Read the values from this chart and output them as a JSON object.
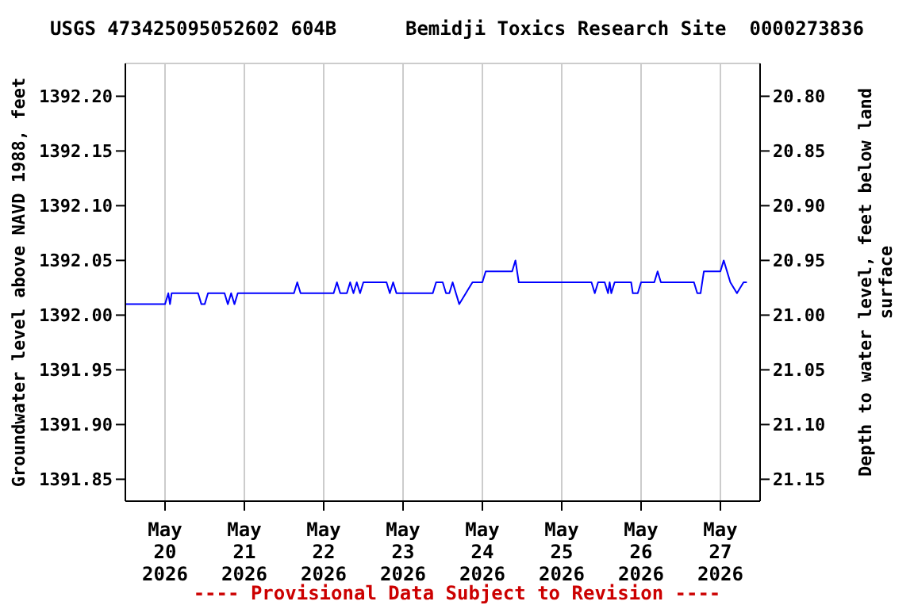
{
  "chart_data": {
    "type": "line",
    "title": "USGS 473425095052602 604B      Bemidji Toxics Research Site  0000273836",
    "ylabel": "Groundwater level above NAVD 1988, feet",
    "y2label": "Depth to water level, feet below land\nsurface",
    "annotations": [
      "---- Provisional Data Subject to Revision ----"
    ],
    "x": [
      "2026-05-19T12:00",
      "2026-05-20T00:00",
      "2026-05-20T01:00",
      "2026-05-20T01:30",
      "2026-05-20T02:00",
      "2026-05-20T10:00",
      "2026-05-20T11:00",
      "2026-05-20T12:00",
      "2026-05-20T13:00",
      "2026-05-20T18:00",
      "2026-05-20T19:00",
      "2026-05-20T20:00",
      "2026-05-20T21:00",
      "2026-05-20T22:00",
      "2026-05-21T15:00",
      "2026-05-21T16:00",
      "2026-05-21T17:00",
      "2026-05-22T03:00",
      "2026-05-22T04:00",
      "2026-05-22T05:00",
      "2026-05-22T07:00",
      "2026-05-22T08:00",
      "2026-05-22T09:00",
      "2026-05-22T10:00",
      "2026-05-22T11:00",
      "2026-05-22T12:00",
      "2026-05-22T19:00",
      "2026-05-22T20:00",
      "2026-05-22T21:00",
      "2026-05-22T22:00",
      "2026-05-23T09:00",
      "2026-05-23T10:00",
      "2026-05-23T12:00",
      "2026-05-23T13:00",
      "2026-05-23T14:00",
      "2026-05-23T15:00",
      "2026-05-23T17:00",
      "2026-05-23T19:00",
      "2026-05-23T21:00",
      "2026-05-24T00:00",
      "2026-05-24T01:00",
      "2026-05-24T09:00",
      "2026-05-24T10:00",
      "2026-05-24T11:00",
      "2026-05-25T09:00",
      "2026-05-25T10:00",
      "2026-05-25T11:00",
      "2026-05-25T13:00",
      "2026-05-25T14:00",
      "2026-05-25T14:30",
      "2026-05-25T15:00",
      "2026-05-25T16:00",
      "2026-05-25T21:00",
      "2026-05-25T21:30",
      "2026-05-25T23:00",
      "2026-05-26T00:00",
      "2026-05-26T04:00",
      "2026-05-26T05:00",
      "2026-05-26T06:00",
      "2026-05-26T16:00",
      "2026-05-26T17:00",
      "2026-05-26T18:00",
      "2026-05-26T19:00",
      "2026-05-27T00:00",
      "2026-05-27T01:00",
      "2026-05-27T03:00",
      "2026-05-27T05:00",
      "2026-05-27T07:00",
      "2026-05-27T08:00"
    ],
    "series": [
      {
        "color": "#0000ff",
        "values": [
          1392.01,
          1392.01,
          1392.02,
          1392.01,
          1392.02,
          1392.02,
          1392.01,
          1392.01,
          1392.02,
          1392.02,
          1392.01,
          1392.02,
          1392.01,
          1392.02,
          1392.02,
          1392.03,
          1392.02,
          1392.02,
          1392.03,
          1392.02,
          1392.02,
          1392.03,
          1392.02,
          1392.03,
          1392.02,
          1392.03,
          1392.03,
          1392.02,
          1392.03,
          1392.02,
          1392.02,
          1392.03,
          1392.03,
          1392.02,
          1392.02,
          1392.03,
          1392.01,
          1392.02,
          1392.03,
          1392.03,
          1392.04,
          1392.04,
          1392.05,
          1392.03,
          1392.03,
          1392.02,
          1392.03,
          1392.03,
          1392.02,
          1392.03,
          1392.02,
          1392.03,
          1392.03,
          1392.02,
          1392.02,
          1392.03,
          1392.03,
          1392.04,
          1392.03,
          1392.03,
          1392.02,
          1392.02,
          1392.04,
          1392.04,
          1392.05,
          1392.03,
          1392.02,
          1392.03,
          1392.03
        ]
      }
    ],
    "xlim": [
      "2026-05-19T12:00",
      "2026-05-27T12:00"
    ],
    "xticks": [
      {
        "value": "2026-05-20",
        "label": "May\n20\n2026"
      },
      {
        "value": "2026-05-21",
        "label": "May\n21\n2026"
      },
      {
        "value": "2026-05-22",
        "label": "May\n22\n2026"
      },
      {
        "value": "2026-05-23",
        "label": "May\n23\n2026"
      },
      {
        "value": "2026-05-24",
        "label": "May\n24\n2026"
      },
      {
        "value": "2026-05-25",
        "label": "May\n25\n2026"
      },
      {
        "value": "2026-05-26",
        "label": "May\n26\n2026"
      },
      {
        "value": "2026-05-27",
        "label": "May\n27\n2026"
      }
    ],
    "ylim": [
      1391.83,
      1392.23
    ],
    "yticks": [
      {
        "value": 1391.85,
        "label": "1391.85"
      },
      {
        "value": 1391.9,
        "label": "1391.90"
      },
      {
        "value": 1391.95,
        "label": "1391.95"
      },
      {
        "value": 1392.0,
        "label": "1392.00"
      },
      {
        "value": 1392.05,
        "label": "1392.05"
      },
      {
        "value": 1392.1,
        "label": "1392.10"
      },
      {
        "value": 1392.15,
        "label": "1392.15"
      },
      {
        "value": 1392.2,
        "label": "1392.20"
      }
    ],
    "y2lim": [
      21.17,
      20.77
    ],
    "y2ticks": [
      {
        "value": 21.15,
        "label": "21.15"
      },
      {
        "value": 21.1,
        "label": "21.10"
      },
      {
        "value": 21.05,
        "label": "21.05"
      },
      {
        "value": 21.0,
        "label": "21.00"
      },
      {
        "value": 20.95,
        "label": "20.95"
      },
      {
        "value": 20.9,
        "label": "20.90"
      },
      {
        "value": 20.85,
        "label": "20.85"
      },
      {
        "value": 20.8,
        "label": "20.80"
      }
    ],
    "grid": true,
    "legend": false,
    "marker": "none",
    "line_style": "solid"
  }
}
